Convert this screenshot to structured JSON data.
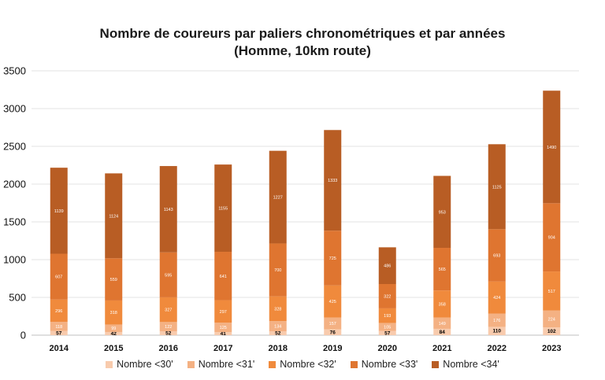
{
  "chart_data": {
    "type": "bar",
    "stacked": true,
    "title_line1": "Nombre de coureurs par paliers chronométriques et par années",
    "title_line2": "(Homme, 10km route)",
    "categories": [
      "2014",
      "2015",
      "2016",
      "2017",
      "2018",
      "2019",
      "2020",
      "2021",
      "2022",
      "2023"
    ],
    "ylim": [
      0,
      3500
    ],
    "yticks": [
      "0",
      "500",
      "1000",
      "1500",
      "2000",
      "2500",
      "3000",
      "3500"
    ],
    "grid": true,
    "legend_position": "bottom",
    "series": [
      {
        "name": "Nombre <30'",
        "color": "#f8cbad",
        "values": [
          57,
          42,
          52,
          41,
          52,
          76,
          57,
          84,
          110,
          102
        ]
      },
      {
        "name": "Nombre <31'",
        "color": "#f4b183",
        "values": [
          118,
          99,
          122,
          125,
          134,
          157,
          105,
          149,
          176,
          224
        ]
      },
      {
        "name": "Nombre <32'",
        "color": "#f08a3c",
        "values": [
          296,
          318,
          327,
          297,
          328,
          425,
          193,
          358,
          424,
          517
        ]
      },
      {
        "name": "Nombre <33'",
        "color": "#df7530",
        "values": [
          607,
          559,
          595,
          641,
          700,
          725,
          322,
          565,
          693,
          904
        ]
      },
      {
        "name": "Nombre <34'",
        "color": "#b85d24",
        "values": [
          1139,
          1124,
          1143,
          1155,
          1227,
          1333,
          486,
          953,
          1125,
          1490
        ]
      }
    ]
  }
}
